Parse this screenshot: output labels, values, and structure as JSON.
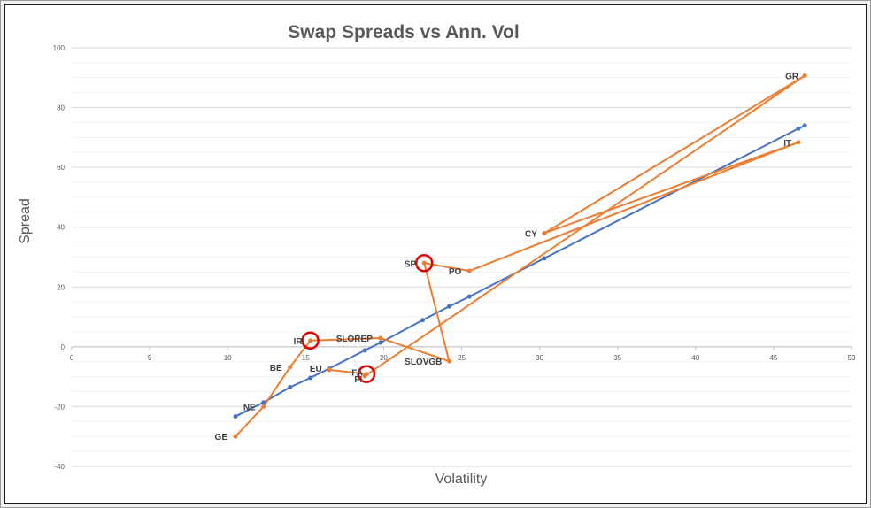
{
  "chart_data": {
    "type": "scatter",
    "title": "Swap Spreads vs Ann. Vol",
    "xlabel": "Volatility",
    "ylabel": "Spread",
    "xlim": [
      0,
      50
    ],
    "ylim": [
      -40,
      100
    ],
    "xticks": [
      "0",
      "5",
      "10",
      "15",
      "20",
      "25",
      "30",
      "35",
      "40",
      "45",
      "50"
    ],
    "yticks": [
      "-40",
      "-20",
      "0",
      "20",
      "40",
      "60",
      "80",
      "100"
    ],
    "grid": true,
    "colors": {
      "fitted": "#4472c4",
      "actual": "#ed7d31",
      "highlight": "#e00000"
    },
    "series": [
      {
        "points": [
          {
            "x": 10.5,
            "y": -23.3
          },
          {
            "x": 12.3,
            "y": -18.6
          },
          {
            "x": 14.0,
            "y": -13.5
          },
          {
            "x": 15.3,
            "y": -10.4
          },
          {
            "x": 16.5,
            "y": -7.3
          },
          {
            "x": 18.8,
            "y": -1.2
          },
          {
            "x": 19.8,
            "y": 1.4
          },
          {
            "x": 22.5,
            "y": 8.9
          },
          {
            "x": 24.2,
            "y": 13.5
          },
          {
            "x": 25.5,
            "y": 16.8
          },
          {
            "x": 30.3,
            "y": 29.6
          },
          {
            "x": 46.6,
            "y": 73.0
          },
          {
            "x": 47.0,
            "y": 74.0
          }
        ]
      },
      {
        "points": [
          {
            "label": "GE",
            "x": 10.5,
            "y": -30.0
          },
          {
            "label": "NE",
            "x": 12.3,
            "y": -20.0
          },
          {
            "label": "BE",
            "x": 14.0,
            "y": -6.8
          },
          {
            "label": "IR",
            "x": 15.3,
            "y": 2.1
          },
          {
            "label": "SLOREP",
            "x": 19.8,
            "y": 2.9
          },
          {
            "label": "SLOVGB",
            "x": 24.2,
            "y": -4.8
          },
          {
            "label": "SP",
            "x": 22.6,
            "y": 28.0
          },
          {
            "label": "PO",
            "x": 25.5,
            "y": 25.4
          },
          {
            "label": "IT",
            "x": 46.6,
            "y": 68.4
          },
          {
            "label": "CY",
            "x": 30.3,
            "y": 38.0
          },
          {
            "label": "GR",
            "x": 47.0,
            "y": 90.7
          },
          {
            "label": "FI",
            "x": 18.8,
            "y": -9.8
          },
          {
            "label": "FA",
            "x": 18.9,
            "y": -9.1
          },
          {
            "label": "EU",
            "x": 16.5,
            "y": -7.7
          }
        ]
      }
    ],
    "highlighted": [
      "IR",
      "SP",
      "FA"
    ]
  }
}
